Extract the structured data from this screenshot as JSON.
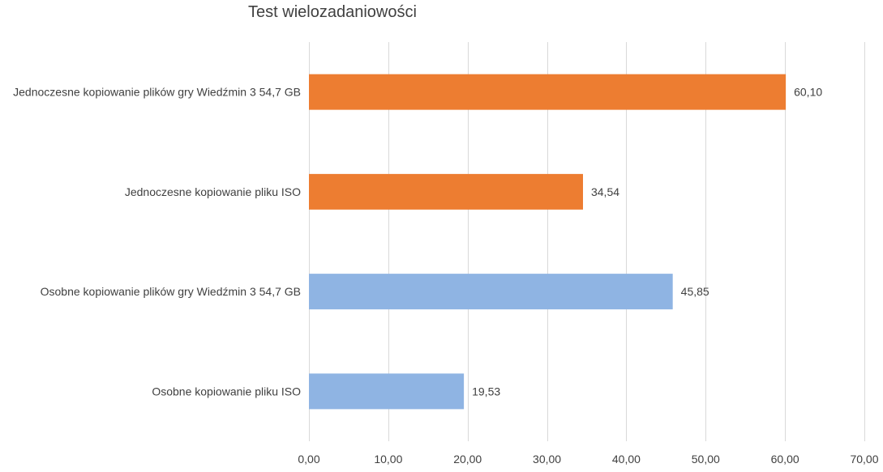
{
  "chart_data": {
    "type": "bar",
    "orientation": "horizontal",
    "title": "Test wielozadaniowości",
    "xlabel": "",
    "ylabel": "",
    "categories": [
      "Jednoczesne kopiowanie plików gry Wiedźmin 3 54,7 GB",
      "Jednoczesne kopiowanie pliku ISO",
      "Osobne kopiowanie plików gry Wiedźmin 3 54,7 GB",
      "Osobne kopiowanie pliku ISO"
    ],
    "values": [
      60.1,
      34.54,
      45.85,
      19.53
    ],
    "value_labels": [
      "60,10",
      "34,54",
      "45,85",
      "19,53"
    ],
    "bar_colors": [
      "#ED7D31",
      "#ED7D31",
      "#8FB4E3",
      "#8FB4E3"
    ],
    "xlim": [
      0,
      70
    ],
    "ticks": [
      0,
      10,
      20,
      30,
      40,
      50,
      60,
      70
    ],
    "tick_labels": [
      "0,00",
      "10,00",
      "20,00",
      "30,00",
      "40,00",
      "50,00",
      "60,00",
      "70,00"
    ],
    "grid": true,
    "grid_color": "#D9D9D9",
    "legend": "none"
  }
}
